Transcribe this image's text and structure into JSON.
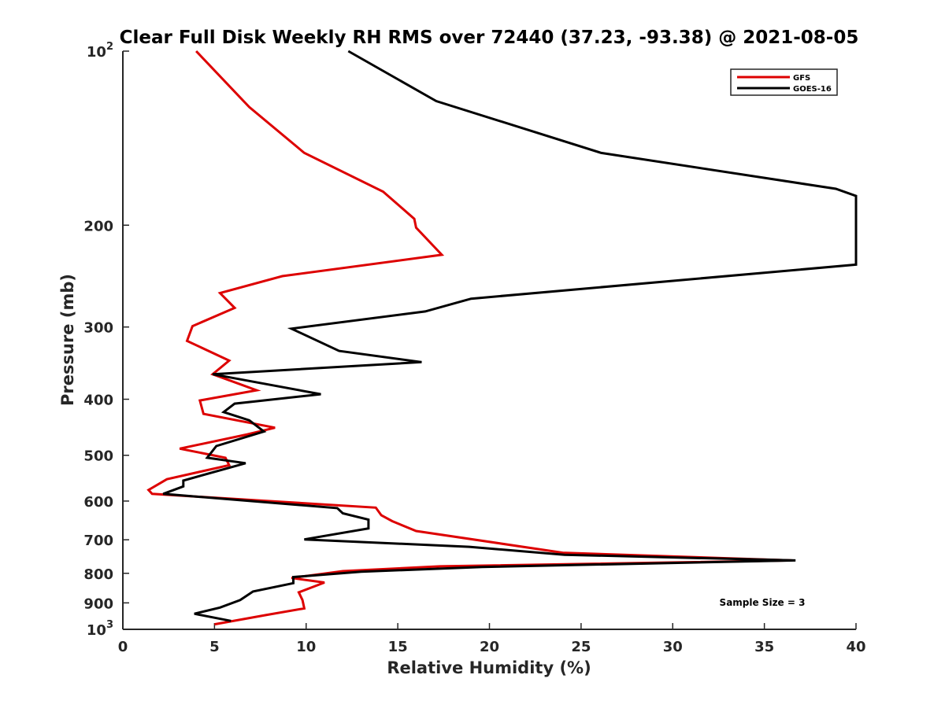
{
  "chart_data": {
    "type": "line",
    "title": "Clear Full Disk Weekly RH RMS over 72440 (37.23, -93.38) @ 2021-08-05",
    "xlabel": "Relative Humidity (%)",
    "ylabel": "Pressure (mb)",
    "xlim": [
      0,
      40
    ],
    "ylim": [
      100,
      1000
    ],
    "y_scale": "log",
    "y_reversed": true,
    "grid": false,
    "legend_position": "top-right",
    "x_ticks": [
      0,
      5,
      10,
      15,
      20,
      25,
      30,
      35,
      40
    ],
    "y_ticks": [
      {
        "value": 100,
        "label": "10",
        "sup": "2"
      },
      {
        "value": 200,
        "label": "200",
        "sup": ""
      },
      {
        "value": 300,
        "label": "300",
        "sup": ""
      },
      {
        "value": 400,
        "label": "400",
        "sup": ""
      },
      {
        "value": 500,
        "label": "500",
        "sup": ""
      },
      {
        "value": 600,
        "label": "600",
        "sup": ""
      },
      {
        "value": 700,
        "label": "700",
        "sup": ""
      },
      {
        "value": 800,
        "label": "800",
        "sup": ""
      },
      {
        "value": 900,
        "label": "900",
        "sup": ""
      },
      {
        "value": 1000,
        "label": "10",
        "sup": "3"
      }
    ],
    "annotation": "Sample Size = 3",
    "series": [
      {
        "name": "GFS",
        "color": "#dd0000",
        "points": [
          [
            4.0,
            100
          ],
          [
            6.9,
            125
          ],
          [
            9.9,
            150
          ],
          [
            14.2,
            175
          ],
          [
            15.9,
            195
          ],
          [
            16.0,
            202
          ],
          [
            17.4,
            225
          ],
          [
            8.7,
            245
          ],
          [
            5.3,
            262
          ],
          [
            6.1,
            278
          ],
          [
            3.8,
            299
          ],
          [
            3.5,
            317
          ],
          [
            5.8,
            343
          ],
          [
            4.9,
            362
          ],
          [
            7.3,
            386
          ],
          [
            4.2,
            402
          ],
          [
            4.4,
            424
          ],
          [
            8.3,
            448
          ],
          [
            6.8,
            460
          ],
          [
            3.1,
            487
          ],
          [
            5.6,
            505
          ],
          [
            5.8,
            520
          ],
          [
            2.4,
            550
          ],
          [
            1.4,
            574
          ],
          [
            1.6,
            583
          ],
          [
            13.8,
            616
          ],
          [
            14.1,
            635
          ],
          [
            14.7,
            650
          ],
          [
            16.0,
            676
          ],
          [
            24.0,
            737
          ],
          [
            36.5,
            760
          ],
          [
            17.3,
            778
          ],
          [
            12.0,
            793
          ],
          [
            9.2,
            815
          ],
          [
            11.0,
            830
          ],
          [
            9.6,
            863
          ],
          [
            9.8,
            890
          ],
          [
            9.9,
            920
          ],
          [
            7.8,
            945
          ],
          [
            5.0,
            980
          ]
        ]
      },
      {
        "name": "GOES-16",
        "color": "#000000",
        "points": [
          [
            12.3,
            100
          ],
          [
            17.1,
            122
          ],
          [
            26.1,
            150
          ],
          [
            38.9,
            173
          ],
          [
            40.0,
            178
          ],
          [
            40.0,
            234
          ],
          [
            19.0,
            268
          ],
          [
            16.5,
            282
          ],
          [
            9.2,
            302
          ],
          [
            11.8,
            330
          ],
          [
            16.3,
            345
          ],
          [
            4.9,
            362
          ],
          [
            10.8,
            392
          ],
          [
            6.1,
            407
          ],
          [
            5.5,
            421
          ],
          [
            6.9,
            435
          ],
          [
            7.7,
            455
          ],
          [
            5.1,
            482
          ],
          [
            4.6,
            505
          ],
          [
            6.7,
            516
          ],
          [
            3.3,
            553
          ],
          [
            3.3,
            566
          ],
          [
            2.2,
            583
          ],
          [
            11.7,
            617
          ],
          [
            12.0,
            630
          ],
          [
            13.4,
            646
          ],
          [
            13.4,
            669
          ],
          [
            9.9,
            699
          ],
          [
            18.9,
            720
          ],
          [
            24.1,
            743
          ],
          [
            36.7,
            760
          ],
          [
            19.6,
            780
          ],
          [
            13.0,
            795
          ],
          [
            9.3,
            812
          ],
          [
            9.3,
            832
          ],
          [
            7.1,
            860
          ],
          [
            6.4,
            890
          ],
          [
            5.3,
            917
          ],
          [
            3.9,
            940
          ],
          [
            5.9,
            967
          ]
        ]
      }
    ]
  }
}
